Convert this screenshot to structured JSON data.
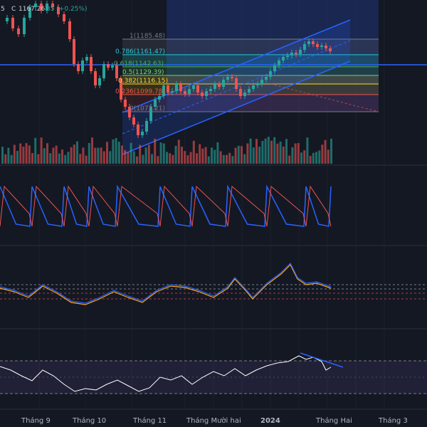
{
  "header": {
    "ohlc_prefix": "5",
    "close_label": "C",
    "close_value": "1167.26",
    "change_text": "35 (+0.25%)",
    "colors": {
      "up": "#26a69a",
      "down": "#ef5350"
    }
  },
  "fib_levels": [
    {
      "label": "1(1185.48)",
      "price": 1185.48,
      "color": "#787b86"
    },
    {
      "label": "0.786(1161.47)",
      "price": 1161.47,
      "color": "#26c6da"
    },
    {
      "label": "0.618(1142.63)",
      "price": 1142.63,
      "color": "#4caf50"
    },
    {
      "label": "0.5(1129.39)",
      "price": 1129.39,
      "color": "#81c784"
    },
    {
      "label": "0.382(1116.15)",
      "price": 1116.15,
      "color": "#fdd835"
    },
    {
      "label": "0.236(1099.78)",
      "price": 1099.78,
      "color": "#ef5350"
    },
    {
      "label": "0(1073.21)",
      "price": 1073.21,
      "color": "#787b86"
    }
  ],
  "chart_data": {
    "type": "candlestick",
    "x_ticks": [
      "Tháng 9",
      "Tháng 10",
      "Tháng 11",
      "Tháng Mười hai",
      "2024",
      "Tháng Hai",
      "Tháng 3"
    ],
    "indicator_panes": [
      "volume",
      "oscillator",
      "stochastic",
      "rsi"
    ]
  }
}
